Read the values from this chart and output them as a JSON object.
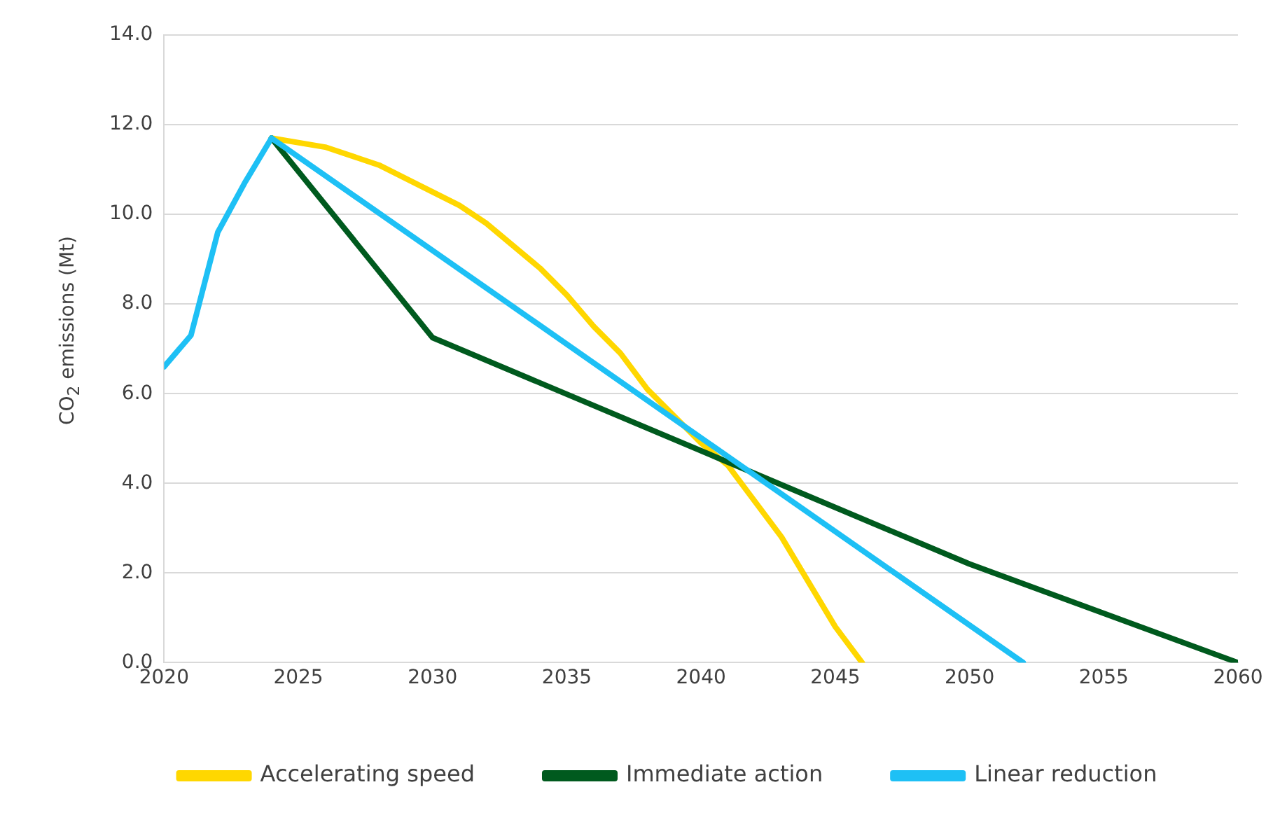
{
  "chart_data": {
    "type": "line",
    "ylabel": "CO$_{2}$ emissions (Mt)",
    "xlim": [
      2020,
      2060
    ],
    "xticks": [
      2020,
      2025,
      2030,
      2035,
      2040,
      2045,
      2050,
      2055,
      2060
    ],
    "ylim": [
      0,
      14
    ],
    "yticks": [
      {
        "value": 0,
        "label": "0.0"
      },
      {
        "value": 2,
        "label": "2.0"
      },
      {
        "value": 4,
        "label": "4.0"
      },
      {
        "value": 6,
        "label": "6.0"
      },
      {
        "value": 8,
        "label": "8.0"
      },
      {
        "value": 10,
        "label": "10.0"
      },
      {
        "value": 12,
        "label": "12.0"
      },
      {
        "value": 14,
        "label": "14.0"
      }
    ],
    "grid": "y",
    "legend": "bottom",
    "marker": "none",
    "line_style": "solid",
    "series": [
      {
        "name": "Accelerating speed",
        "color": "#ffd700",
        "x": [
          2024,
          2026,
          2028,
          2030,
          2031,
          2032,
          2034,
          2035,
          2036,
          2037,
          2038,
          2039,
          2040,
          2041,
          2042,
          2043,
          2044,
          2045,
          2046
        ],
        "values": [
          11.7,
          11.5,
          11.1,
          10.5,
          10.2,
          9.8,
          8.8,
          8.2,
          7.5,
          6.9,
          6.1,
          5.5,
          4.9,
          4.4,
          3.6,
          2.8,
          1.8,
          0.8,
          0
        ]
      },
      {
        "name": "Immediate action",
        "color": "#005a1e",
        "x": [
          2024,
          2030,
          2050,
          2060
        ],
        "values": [
          11.7,
          7.25,
          2.2,
          0
        ]
      },
      {
        "name": "Linear reduction",
        "color": "#1ec0f5",
        "x": [
          2020,
          2021,
          2022,
          2023,
          2024,
          2052
        ],
        "values": [
          6.6,
          7.3,
          9.6,
          10.7,
          11.7,
          0
        ]
      }
    ]
  }
}
